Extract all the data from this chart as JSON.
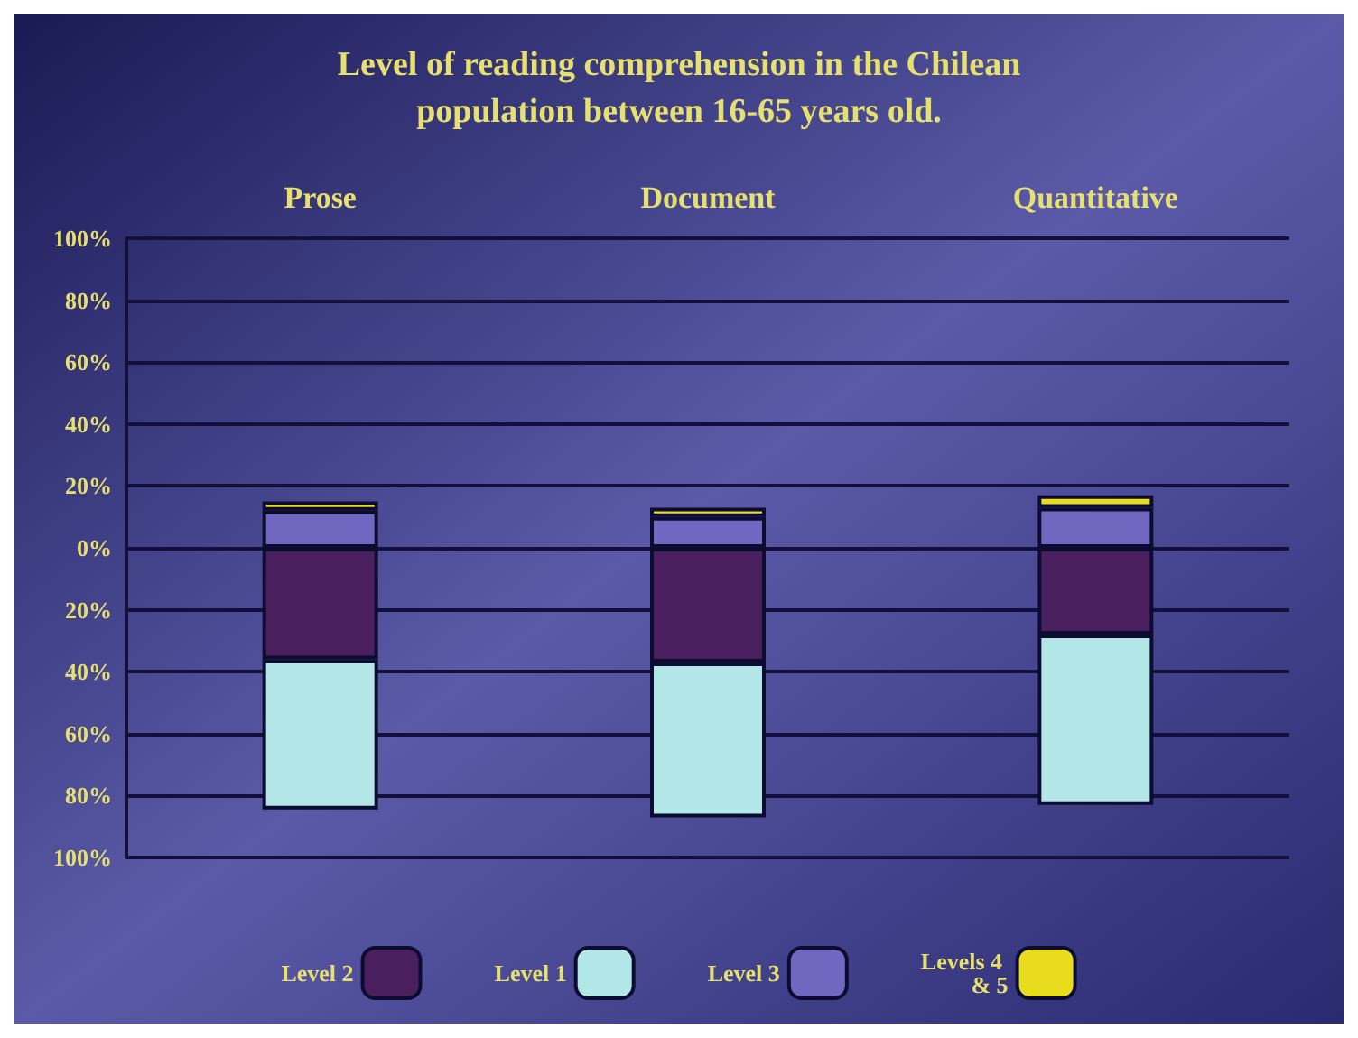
{
  "chart_data": {
    "type": "bar",
    "stacked": true,
    "title": "Level of reading comprehension in the Chilean\npopulation between 16-65 years old.",
    "categories": [
      "Prose",
      "Document",
      "Quantitative"
    ],
    "series": [
      {
        "name": "Level 2",
        "color": "#4a1f5e",
        "values": [
          -36,
          -37,
          -28
        ]
      },
      {
        "name": "Level 1",
        "color": "#b3e6e6",
        "values": [
          -48.5,
          -50,
          -55
        ]
      },
      {
        "name": "Level 3",
        "color": "#7068c0",
        "values": [
          12,
          10,
          13
        ]
      },
      {
        "name": "Levels 4 & 5",
        "color": "#e8dc1c",
        "values": [
          3,
          3,
          4
        ]
      }
    ],
    "ylim": [
      -100,
      100
    ],
    "yticks": [
      {
        "value": -100,
        "label": "100%"
      },
      {
        "value": -80,
        "label": "80%"
      },
      {
        "value": -60,
        "label": "60%"
      },
      {
        "value": -40,
        "label": "40%"
      },
      {
        "value": -20,
        "label": "20%"
      },
      {
        "value": 0,
        "label": "0%"
      },
      {
        "value": 20,
        "label": "20%"
      },
      {
        "value": 40,
        "label": "40%"
      },
      {
        "value": 60,
        "label": "60%"
      },
      {
        "value": 80,
        "label": "80%"
      },
      {
        "value": 100,
        "label": "100%"
      }
    ],
    "grid": true,
    "legend": "bottom"
  }
}
